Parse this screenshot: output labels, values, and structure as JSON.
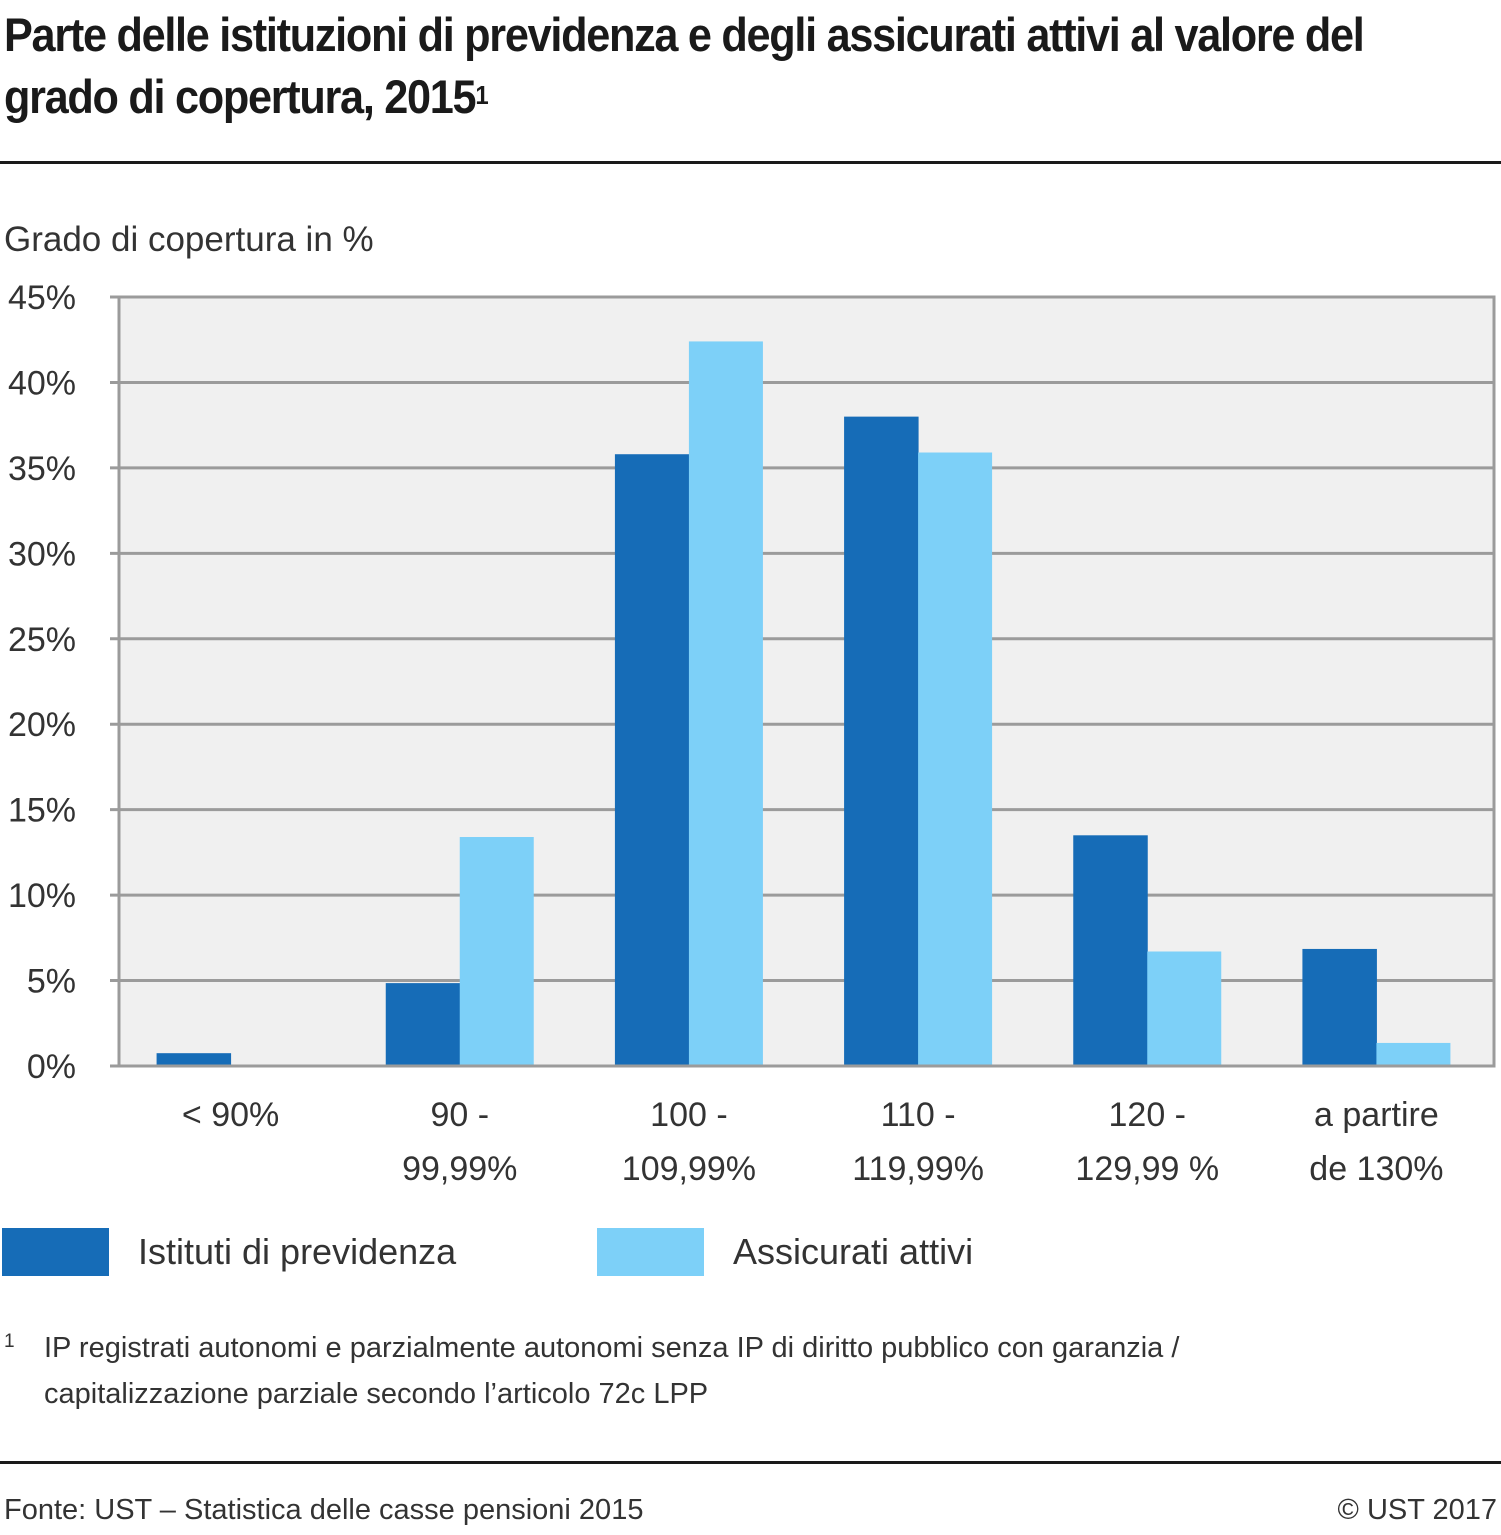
{
  "header": {
    "title": "Parte delle istituzioni di previdenza e degli assicurati attivi al valore del grado di copertura, 2015",
    "title_footnote_marker": "1"
  },
  "chart_data": {
    "type": "bar",
    "title": "Parte delle istituzioni di previdenza e degli assicurati attivi al valore del grado di copertura, 2015",
    "ylabel": "Grado di copertura in %",
    "xlabel": "",
    "ylim": [
      0,
      45
    ],
    "ytick_step": 5,
    "yticks": [
      "0%",
      "5%",
      "10%",
      "15%",
      "20%",
      "25%",
      "30%",
      "35%",
      "40%",
      "45%"
    ],
    "grid": true,
    "legend_position": "bottom-left",
    "categories": [
      [
        "< 90%"
      ],
      [
        "90 -",
        "99,99%"
      ],
      [
        "100 -",
        "109,99%"
      ],
      [
        "110 -",
        "119,99%"
      ],
      [
        "120 -",
        "129,99 %"
      ],
      [
        "a partire",
        "de 130%"
      ]
    ],
    "series": [
      {
        "name": "Istituti di previdenza",
        "color": "#166cb7",
        "values": [
          0.75,
          4.85,
          35.8,
          38.0,
          13.5,
          6.85
        ]
      },
      {
        "name": "Assicurati attivi",
        "color": "#7dd0f8",
        "values": [
          0,
          13.4,
          42.4,
          35.9,
          6.7,
          1.35
        ]
      }
    ],
    "colors": {
      "plot_background": "#f0f0f0",
      "grid": "#9b9b9b"
    }
  },
  "legend": {
    "items": [
      {
        "label": "Istituti di previdenza",
        "color": "#166cb7"
      },
      {
        "label": "Assicurati attivi",
        "color": "#7dd0f8"
      }
    ]
  },
  "footnote": {
    "marker": "1",
    "text": "IP registrati autonomi e parzialmente autonomi senza IP di diritto pubblico con garanzia / capitalizzazione parziale secondo l’articolo 72c LPP"
  },
  "footer": {
    "source": "Fonte: UST – Statistica delle casse pensioni 2015",
    "copyright": "© UST 2017"
  }
}
